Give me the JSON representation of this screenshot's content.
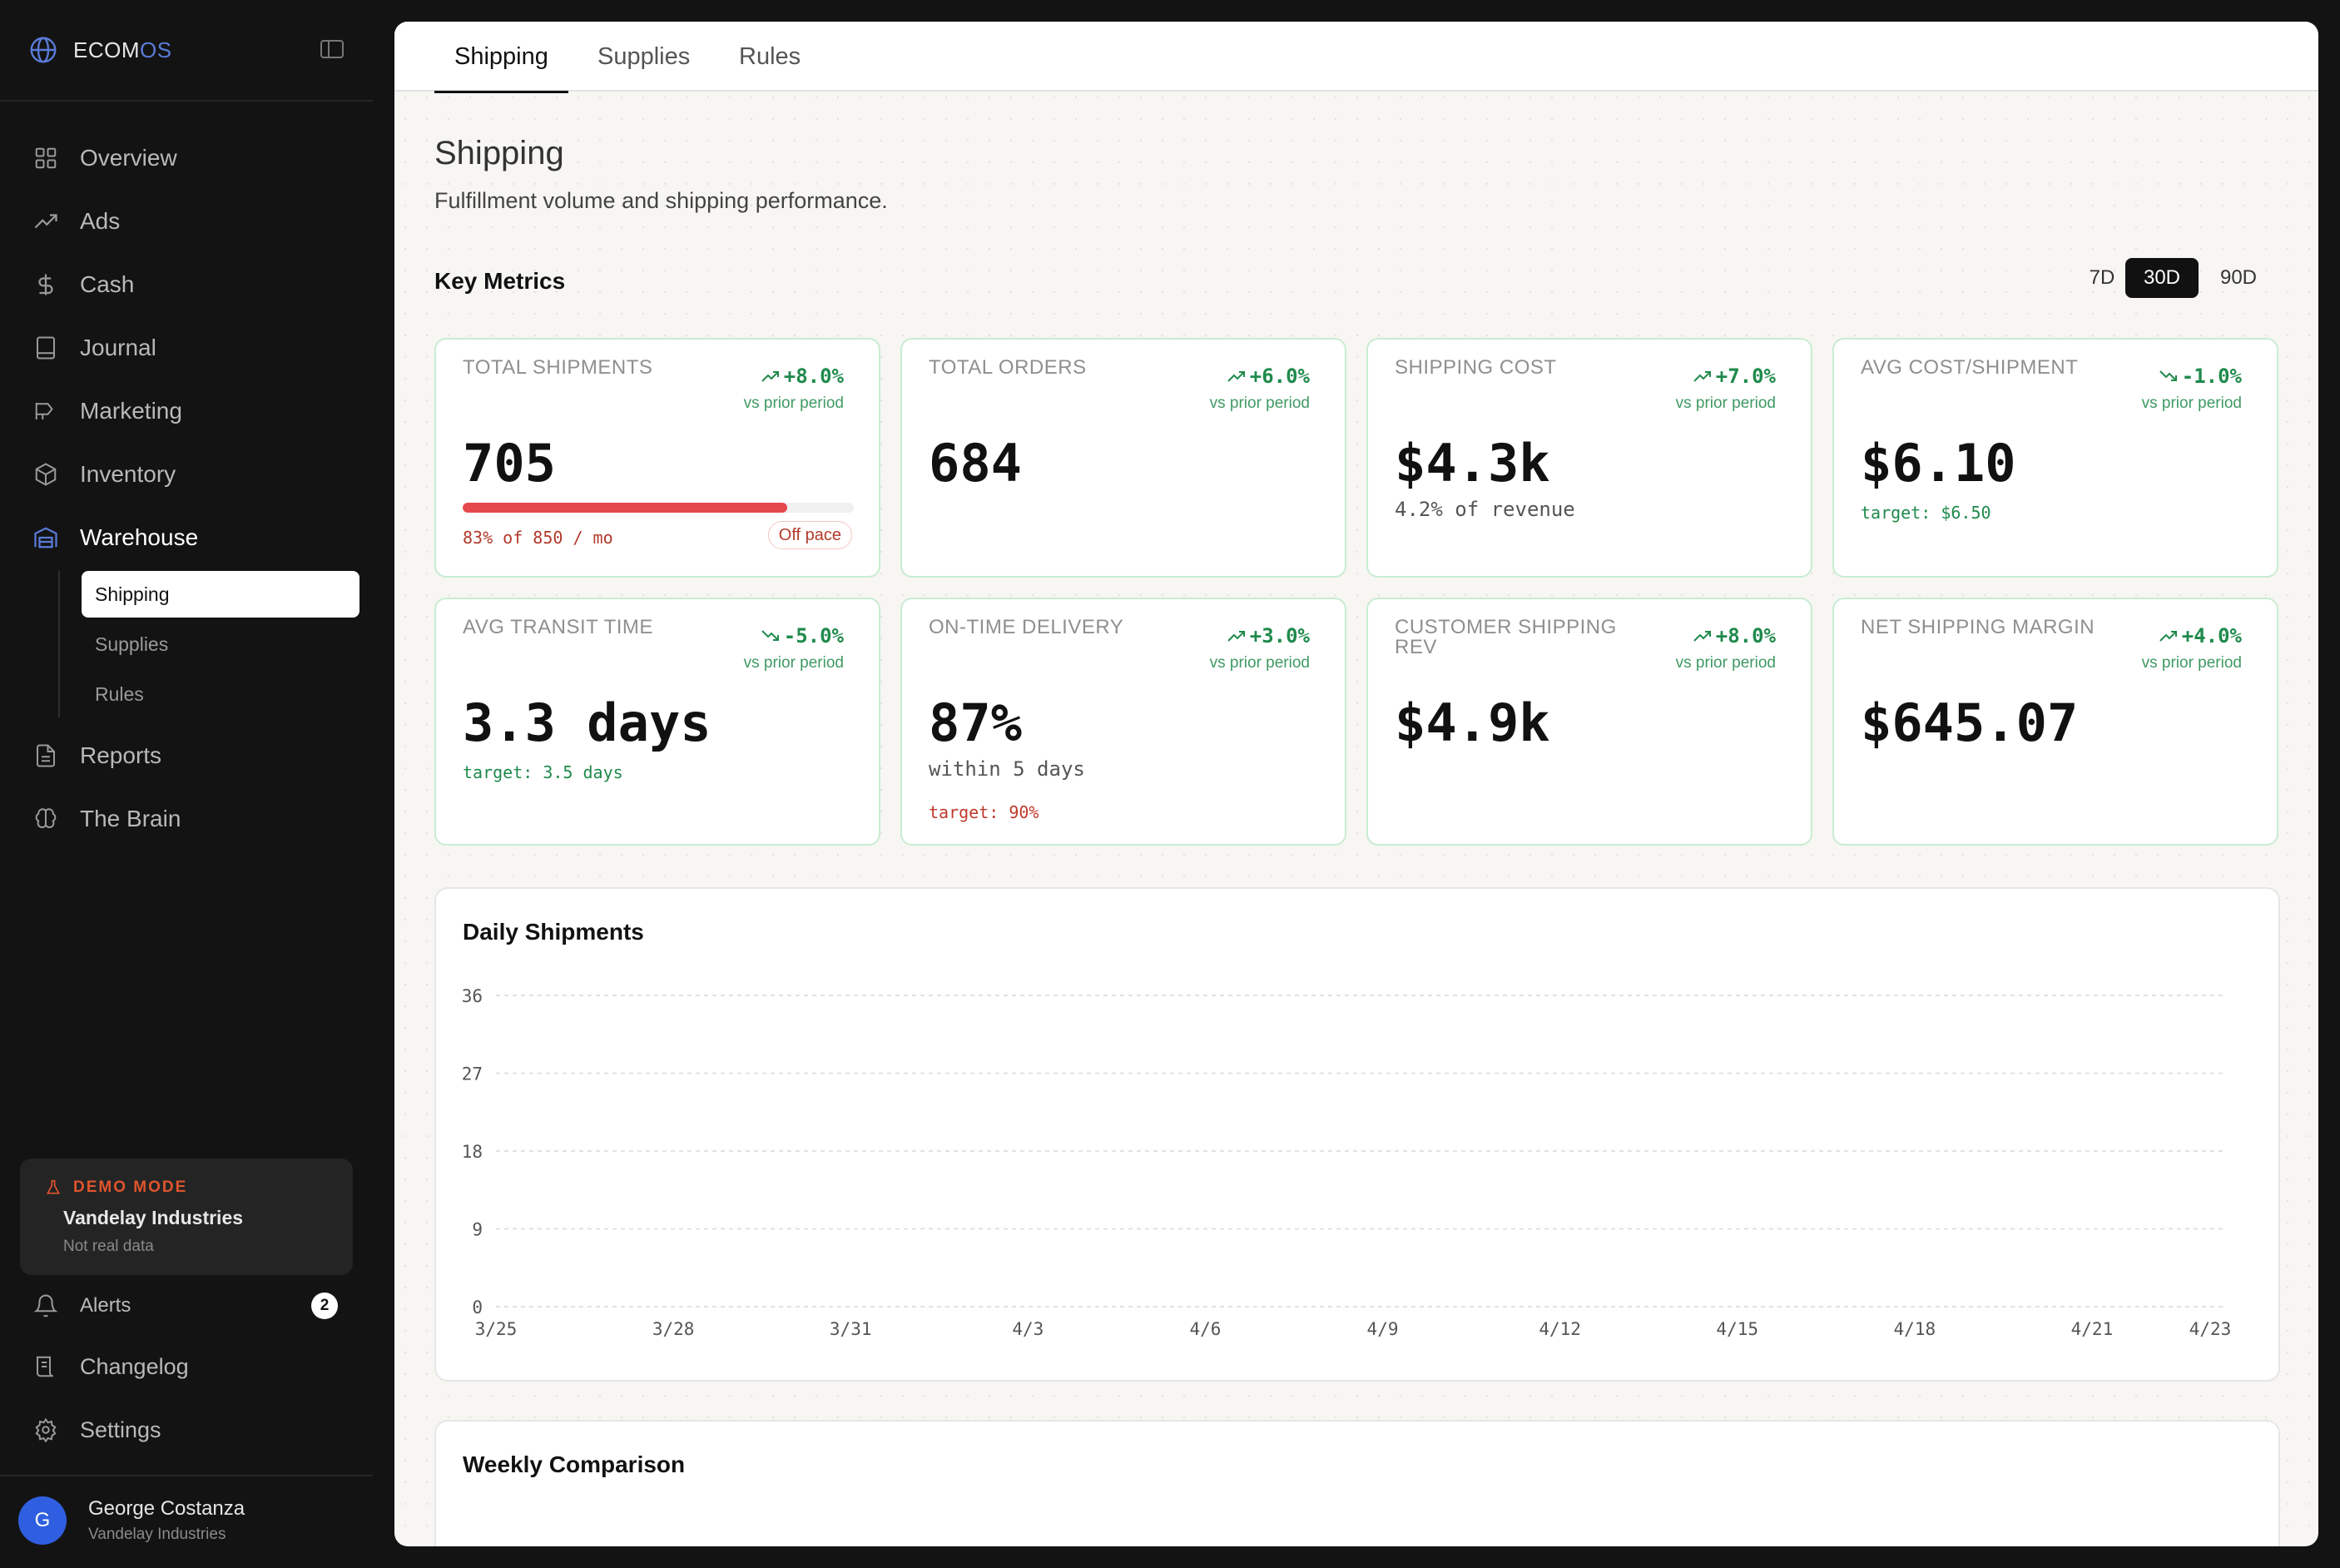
{
  "brand": {
    "name_prefix": "ECOM",
    "name_suffix": "OS"
  },
  "sidebar": {
    "items": [
      {
        "label": "Overview",
        "icon": "grid-icon"
      },
      {
        "label": "Ads",
        "icon": "trend-icon"
      },
      {
        "label": "Cash",
        "icon": "dollar-icon"
      },
      {
        "label": "Journal",
        "icon": "book-icon"
      },
      {
        "label": "Marketing",
        "icon": "megaphone-icon"
      },
      {
        "label": "Inventory",
        "icon": "box-icon"
      },
      {
        "label": "Warehouse",
        "icon": "warehouse-icon"
      }
    ],
    "sub_items": [
      "Shipping",
      "Supplies",
      "Rules"
    ],
    "after_items": [
      {
        "label": "Reports",
        "icon": "document-icon"
      },
      {
        "label": "The Brain",
        "icon": "brain-icon"
      }
    ],
    "demo": {
      "tag": "DEMO MODE",
      "company": "Vandelay Industries",
      "note": "Not real data"
    },
    "bottom": {
      "alerts": "Alerts",
      "alerts_count": "2",
      "changelog": "Changelog",
      "settings": "Settings"
    },
    "user": {
      "initial": "G",
      "name": "George Costanza",
      "org": "Vandelay Industries"
    }
  },
  "tabs": [
    "Shipping",
    "Supplies",
    "Rules"
  ],
  "page": {
    "title": "Shipping",
    "subtitle": "Fulfillment volume and shipping performance.",
    "section": "Key Metrics",
    "ranges": [
      "7D",
      "30D",
      "90D"
    ],
    "active_range": "30D"
  },
  "metrics": [
    {
      "label": "TOTAL SHIPMENTS",
      "change": "+8.0%",
      "dir": "up",
      "vs": "vs prior period",
      "value": "705",
      "progress": 0.83,
      "pace_text": "83% of 850 / mo",
      "pace_badge": "Off pace"
    },
    {
      "label": "TOTAL ORDERS",
      "change": "+6.0%",
      "dir": "up",
      "vs": "vs prior period",
      "value": "684"
    },
    {
      "label": "SHIPPING COST",
      "change": "+7.0%",
      "dir": "up",
      "vs": "vs prior period",
      "value": "$4.3k",
      "aux": "4.2% of revenue"
    },
    {
      "label": "AVG COST/SHIPMENT",
      "change": "-1.0%",
      "dir": "down",
      "vs": "vs prior period",
      "value": "$6.10",
      "target": "target: $6.50",
      "target_color": "green"
    },
    {
      "label": "AVG TRANSIT TIME",
      "change": "-5.0%",
      "dir": "down",
      "vs": "vs prior period",
      "value": "3.3 days",
      "target": "target: 3.5 days",
      "target_color": "green"
    },
    {
      "label": "ON-TIME DELIVERY",
      "change": "+3.0%",
      "dir": "up",
      "vs": "vs prior period",
      "value": "87%",
      "aux": "within 5 days",
      "target": "target: 90%",
      "target_color": "red"
    },
    {
      "label": "CUSTOMER SHIPPING REV",
      "change": "+8.0%",
      "dir": "up",
      "vs": "vs prior period",
      "value": "$4.9k"
    },
    {
      "label": "NET SHIPPING MARGIN",
      "change": "+4.0%",
      "dir": "up",
      "vs": "vs prior period",
      "value": "$645.07"
    }
  ],
  "colors": {
    "accent_green": "#1f8a4c",
    "accent_red": "#e5484d",
    "brand_blue": "#2f5fe0"
  },
  "chart_data": {
    "type": "line",
    "title": "Daily Shipments",
    "x": [
      "3/25",
      "3/28",
      "3/31",
      "4/3",
      "4/6",
      "4/9",
      "4/12",
      "4/15",
      "4/18",
      "4/21",
      "4/23"
    ],
    "y_ticks": [
      0,
      9,
      18,
      27,
      36
    ],
    "ylim": [
      0,
      36
    ],
    "series": [],
    "grid": true
  },
  "weekly": {
    "title": "Weekly Comparison"
  }
}
